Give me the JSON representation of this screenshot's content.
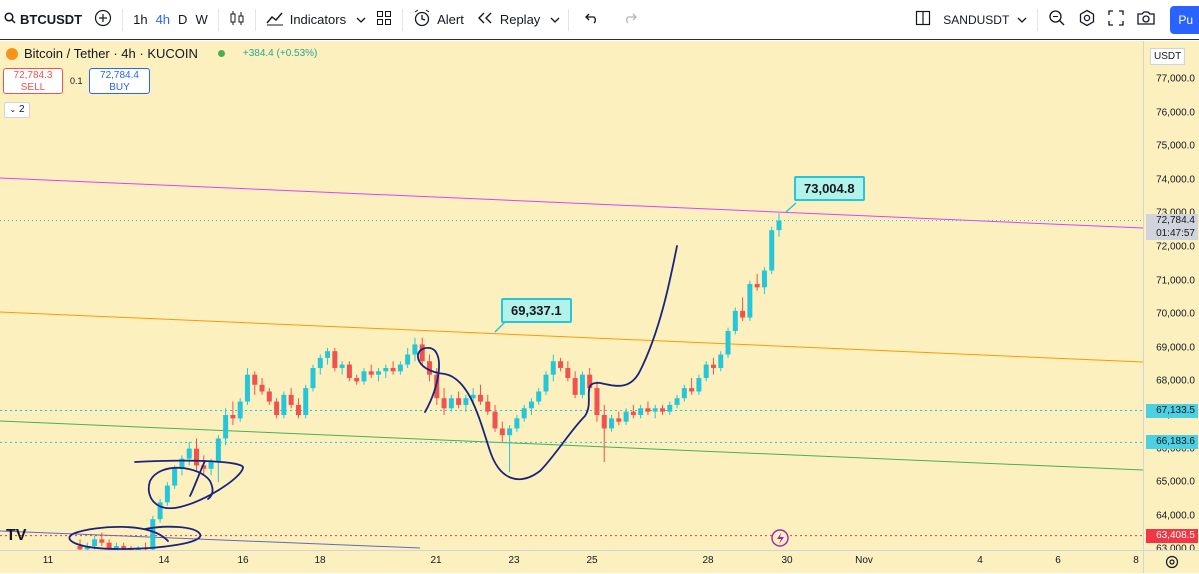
{
  "toolbar": {
    "symbol": "BTCUSDT",
    "timeframes": [
      "1h",
      "4h",
      "D",
      "W"
    ],
    "active_timeframe": "4h",
    "indicators_label": "Indicators",
    "alert_label": "Alert",
    "replay_label": "Replay",
    "compare_symbol": "SANDUSDT",
    "publish_label": "Pu",
    "icons": [
      "search-icon",
      "add-symbol-icon",
      "candles-icon",
      "indicators-icon",
      "templates-icon",
      "alert-icon",
      "replay-icon",
      "undo-icon",
      "redo-icon",
      "layout-icon",
      "zoom-icon",
      "settings-icon",
      "fullscreen-icon",
      "camera-icon"
    ]
  },
  "legend": {
    "title": "Bitcoin / Tether · 4h · KUCOIN",
    "change": "+384.4 (+0.53%)",
    "sell_price": "72,784.3",
    "sell_label": "SELL",
    "spread": "0.1",
    "buy_price": "72,784.4",
    "buy_label": "BUY",
    "indicator_count": "2"
  },
  "price_axis": {
    "currency": "USDT",
    "ticks": [
      "77,000.0",
      "76,000.0",
      "75,000.0",
      "74,000.0",
      "73,000.0",
      "72,000.0",
      "71,000.0",
      "70,000.0",
      "69,000.0",
      "68,000.0",
      "67,000.0",
      "66,000.0",
      "65,000.0",
      "64,000.0",
      "63,000.0"
    ],
    "current_price": "72,784.4",
    "countdown": "01:47:57",
    "level_1": "67,133.5",
    "level_2": "66,183.6",
    "level_3": "63,408.5"
  },
  "time_axis": {
    "ticks": [
      "11",
      "14",
      "16",
      "18",
      "21",
      "23",
      "25",
      "28",
      "30",
      "Nov",
      "4",
      "6",
      "8"
    ]
  },
  "annotations": {
    "note_high": "73,004.8",
    "note_mid": "69,337.1"
  },
  "colors": {
    "chart_bg": "#fcf0be",
    "up": "#26c6da",
    "down": "#ef5350",
    "purple_line": "#e040fb",
    "orange_line": "#ff9800",
    "green_line": "#4caf50",
    "drawing": "#1a237e"
  },
  "chart_data": {
    "type": "candlestick",
    "symbol": "BTCUSDT",
    "interval": "4h",
    "x_ticks": [
      "11",
      "14",
      "16",
      "18",
      "21",
      "23",
      "25",
      "28",
      "30",
      "Nov",
      "4",
      "6",
      "8"
    ],
    "ylim": [
      62700,
      77700
    ],
    "ohlc_approx": [
      [
        63100,
        63300,
        62900,
        63000
      ],
      [
        63000,
        63200,
        62800,
        63100
      ],
      [
        63100,
        63400,
        63000,
        63300
      ],
      [
        63300,
        63500,
        63100,
        63200
      ],
      [
        63200,
        63300,
        62900,
        63000
      ],
      [
        63000,
        63200,
        62900,
        63100
      ],
      [
        63100,
        63200,
        62900,
        63000
      ],
      [
        63000,
        63100,
        62800,
        62900
      ],
      [
        62900,
        63100,
        62800,
        63050
      ],
      [
        63050,
        63200,
        62900,
        63000
      ],
      [
        63000,
        64000,
        62900,
        63900
      ],
      [
        63900,
        64500,
        63800,
        64400
      ],
      [
        64400,
        65000,
        64300,
        64900
      ],
      [
        64900,
        65500,
        64800,
        65400
      ],
      [
        65400,
        65800,
        65200,
        65700
      ],
      [
        65700,
        66200,
        65500,
        66000
      ],
      [
        66000,
        66300,
        65300,
        65500
      ],
      [
        65500,
        65800,
        65200,
        65400
      ],
      [
        65400,
        65700,
        65200,
        65600
      ],
      [
        65600,
        66400,
        65000,
        66300
      ],
      [
        66300,
        67200,
        66100,
        67000
      ],
      [
        67000,
        67400,
        66700,
        66900
      ],
      [
        66900,
        67500,
        66800,
        67400
      ],
      [
        67400,
        68400,
        67300,
        68200
      ],
      [
        68200,
        68300,
        67600,
        67900
      ],
      [
        67900,
        68100,
        67600,
        67700
      ],
      [
        67700,
        67800,
        67300,
        67400
      ],
      [
        67400,
        67500,
        66900,
        67000
      ],
      [
        67000,
        67700,
        66900,
        67600
      ],
      [
        67600,
        67800,
        67200,
        67300
      ],
      [
        67300,
        67500,
        66900,
        67000
      ],
      [
        67000,
        67900,
        66900,
        67800
      ],
      [
        67800,
        68500,
        67700,
        68400
      ],
      [
        68400,
        68800,
        68200,
        68700
      ],
      [
        68700,
        69000,
        68500,
        68900
      ],
      [
        68900,
        69000,
        68300,
        68400
      ],
      [
        68400,
        68600,
        68200,
        68500
      ],
      [
        68500,
        68600,
        68000,
        68100
      ],
      [
        68100,
        68200,
        67900,
        68000
      ],
      [
        68000,
        68400,
        67900,
        68300
      ],
      [
        68300,
        68500,
        68100,
        68200
      ],
      [
        68200,
        68400,
        68000,
        68300
      ],
      [
        68300,
        68500,
        68100,
        68400
      ],
      [
        68400,
        68600,
        68200,
        68300
      ],
      [
        68300,
        68600,
        68200,
        68500
      ],
      [
        68500,
        69000,
        68400,
        68800
      ],
      [
        68800,
        69300,
        68600,
        69100
      ],
      [
        69100,
        69300,
        68500,
        68600
      ],
      [
        68600,
        68800,
        68000,
        68200
      ],
      [
        68200,
        68400,
        67300,
        67500
      ],
      [
        67500,
        67800,
        67000,
        67200
      ],
      [
        67200,
        67600,
        67100,
        67500
      ],
      [
        67500,
        67700,
        67200,
        67300
      ],
      [
        67300,
        67600,
        67100,
        67500
      ],
      [
        67500,
        67800,
        67300,
        67600
      ],
      [
        67600,
        67900,
        67300,
        67400
      ],
      [
        67400,
        67600,
        67000,
        67100
      ],
      [
        67100,
        67300,
        66500,
        66600
      ],
      [
        66600,
        66800,
        66200,
        66400
      ],
      [
        66400,
        66700,
        65300,
        66600
      ],
      [
        66600,
        67000,
        66500,
        66900
      ],
      [
        66900,
        67300,
        66800,
        67200
      ],
      [
        67200,
        67500,
        67000,
        67400
      ],
      [
        67400,
        67800,
        67300,
        67700
      ],
      [
        67700,
        68300,
        67600,
        68200
      ],
      [
        68200,
        68800,
        68000,
        68600
      ],
      [
        68600,
        68700,
        68300,
        68400
      ],
      [
        68400,
        68600,
        68000,
        68100
      ],
      [
        68100,
        68300,
        67500,
        67600
      ],
      [
        67600,
        68300,
        67500,
        68200
      ],
      [
        68200,
        68400,
        67700,
        67800
      ],
      [
        67800,
        68000,
        66800,
        67000
      ],
      [
        67000,
        67300,
        65600,
        66600
      ],
      [
        66600,
        67000,
        66500,
        66900
      ],
      [
        66900,
        67100,
        66700,
        66800
      ],
      [
        66800,
        67200,
        66700,
        67100
      ],
      [
        67100,
        67300,
        66900,
        67000
      ],
      [
        67000,
        67300,
        66900,
        67200
      ],
      [
        67200,
        67400,
        67000,
        67100
      ],
      [
        67100,
        67300,
        66900,
        67200
      ],
      [
        67200,
        67300,
        67000,
        67100
      ],
      [
        67100,
        67400,
        67000,
        67300
      ],
      [
        67300,
        67600,
        67200,
        67500
      ],
      [
        67500,
        67900,
        67400,
        67800
      ],
      [
        67800,
        68100,
        67600,
        67700
      ],
      [
        67700,
        68200,
        67600,
        68100
      ],
      [
        68100,
        68600,
        68000,
        68500
      ],
      [
        68500,
        68700,
        68200,
        68400
      ],
      [
        68400,
        68900,
        68300,
        68800
      ],
      [
        68800,
        69600,
        68700,
        69500
      ],
      [
        69500,
        70200,
        69400,
        70100
      ],
      [
        70100,
        70500,
        69800,
        69900
      ],
      [
        69900,
        71000,
        69800,
        70900
      ],
      [
        70900,
        71200,
        70700,
        70800
      ],
      [
        70800,
        71400,
        70600,
        71300
      ],
      [
        71300,
        72600,
        71200,
        72500
      ],
      [
        72500,
        73004.8,
        72300,
        72784.4
      ]
    ],
    "horizontal_levels": [
      67133.5,
      66183.6,
      63408.5
    ],
    "annotations": [
      {
        "text": "73,004.8",
        "price": 73004.8
      },
      {
        "text": "69,337.1",
        "price": 69337.1
      }
    ]
  }
}
